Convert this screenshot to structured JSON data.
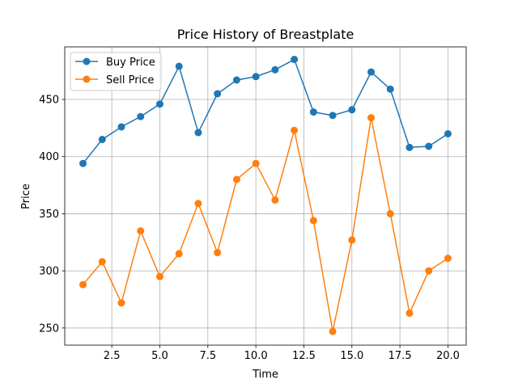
{
  "chart_data": {
    "type": "line",
    "title": "Price History of Breastplate",
    "xlabel": "Time",
    "ylabel": "Price",
    "x": [
      1,
      2,
      3,
      4,
      5,
      6,
      7,
      8,
      9,
      10,
      11,
      12,
      13,
      14,
      15,
      16,
      17,
      18,
      19,
      20
    ],
    "xlim": [
      0.05,
      20.95
    ],
    "ylim": [
      235,
      496
    ],
    "xticks": [
      2.5,
      5.0,
      7.5,
      10.0,
      12.5,
      15.0,
      17.5,
      20.0
    ],
    "xtick_labels": [
      "2.5",
      "5.0",
      "7.5",
      "10.0",
      "12.5",
      "15.0",
      "17.5",
      "20.0"
    ],
    "yticks": [
      250,
      300,
      350,
      400,
      450
    ],
    "ytick_labels": [
      "250",
      "300",
      "350",
      "400",
      "450"
    ],
    "grid": true,
    "legend_position": "top-left",
    "series": [
      {
        "name": "Buy Price",
        "color": "#1f77b4",
        "marker": "circle",
        "values": [
          394,
          415,
          426,
          435,
          446,
          479,
          421,
          455,
          467,
          470,
          476,
          485,
          439,
          436,
          441,
          474,
          459,
          408,
          409,
          420
        ]
      },
      {
        "name": "Sell Price",
        "color": "#ff7f0e",
        "marker": "circle",
        "values": [
          288,
          308,
          272,
          335,
          295,
          315,
          359,
          316,
          380,
          394,
          362,
          423,
          344,
          247,
          327,
          434,
          350,
          263,
          300,
          311
        ]
      }
    ]
  }
}
